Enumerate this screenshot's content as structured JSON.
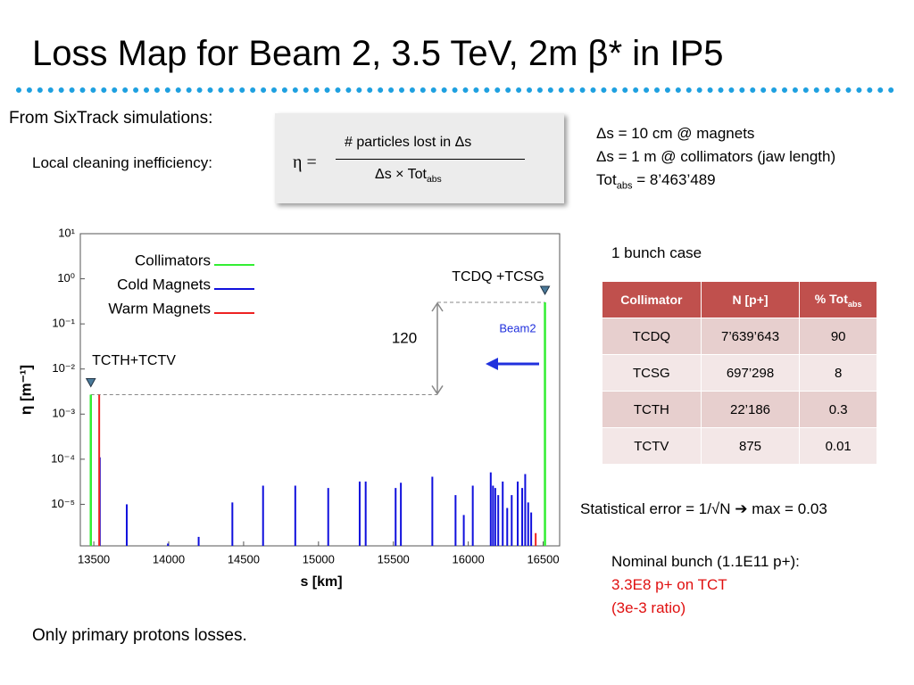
{
  "header": {
    "title": "Loss Map for Beam 2, 3.5 TeV, 2m β* in IP5"
  },
  "intro": {
    "source": "From SixTrack simulations:",
    "definition": "Local cleaning inefficiency:",
    "formula": {
      "lhs": "η =",
      "numerator": "# particles lost in Δs",
      "denominator": {
        "text": "Δs × Tot",
        "sub": "abs"
      }
    }
  },
  "resolution": {
    "magnets": "Δs = 10 cm @ magnets",
    "collimators": "Δs = 1 m @ collimators (jaw length)",
    "total": {
      "text": "Tot",
      "sub": "abs",
      "rest": " = 8’463’489"
    }
  },
  "chart_data": {
    "type": "stem",
    "x_label": "s [km]",
    "y_label": "η [m⁻¹]",
    "log_y": true,
    "legend": "upper left",
    "xlim": [
      13410,
      16610
    ],
    "xticks": [
      13500,
      14000,
      14500,
      15000,
      15500,
      16000,
      16500
    ],
    "ylim": [
      1.2e-06,
      10
    ],
    "yticks": [
      {
        "value": 10,
        "label": "10¹"
      },
      {
        "value": 1,
        "label": "10⁰"
      },
      {
        "value": 0.1,
        "label": "10⁻¹"
      },
      {
        "value": 0.01,
        "label": "10⁻²"
      },
      {
        "value": 0.001,
        "label": "10⁻³"
      },
      {
        "value": 0.0001,
        "label": "10⁻⁴"
      },
      {
        "value": 1e-05,
        "label": "10⁻⁵"
      }
    ],
    "series": [
      {
        "name": "Collimators",
        "color": "#33ee33",
        "x": [
          13480,
          16512
        ],
        "values": [
          0.0027,
          0.3
        ]
      },
      {
        "name": "Cold Magnets",
        "color": "#1010dd",
        "x": [
          13540,
          13720,
          13995,
          14200,
          14425,
          14630,
          14845,
          15065,
          15275,
          15315,
          15515,
          15550,
          15760,
          15915,
          15970,
          16030,
          16150,
          16165,
          16180,
          16200,
          16230,
          16260,
          16290,
          16330,
          16360,
          16380,
          16400,
          16420
        ],
        "values": [
          0.00011,
          1e-05,
          1.35e-06,
          1.9e-06,
          1.1e-05,
          2.6e-05,
          2.6e-05,
          2.3e-05,
          3.2e-05,
          3.2e-05,
          2.3e-05,
          3e-05,
          4.1e-05,
          1.6e-05,
          5.8e-06,
          2.6e-05,
          5.1e-05,
          2.6e-05,
          2.3e-05,
          1.6e-05,
          3.2e-05,
          8.3e-06,
          1.6e-05,
          3.2e-05,
          2.3e-05,
          4.7e-05,
          1.1e-05,
          6.6e-06
        ]
      },
      {
        "name": "Warm Magnets",
        "color": "#ee2222",
        "x": [
          13536,
          16450
        ],
        "values": [
          0.0027,
          2.3e-06
        ]
      }
    ],
    "annotations": {
      "downstream": "TCDQ +TCSG",
      "upstream": "TCTH+TCTV",
      "ratio": "120",
      "beam": "Beam2"
    }
  },
  "table": {
    "caption": "1 bunch case",
    "header": [
      {
        "text": "Collimator"
      },
      {
        "text": "N [p+]"
      },
      {
        "text": "% Tot",
        "sub": "abs"
      }
    ],
    "rows": [
      [
        "TCDQ",
        "7’639’643",
        "90"
      ],
      [
        "TCSG",
        "697’298",
        "8"
      ],
      [
        "TCTH",
        "22’186",
        "0.3"
      ],
      [
        "TCTV",
        "875",
        "0.01"
      ]
    ]
  },
  "notes": {
    "error": "Statistical error = 1/√N ➔ max = 0.03",
    "nominal": "Nominal bunch (1.1E11 p+):",
    "tct": "3.3E8 p+ on TCT",
    "ratio": "(3e-3 ratio)",
    "footer": "Only primary protons losses."
  }
}
